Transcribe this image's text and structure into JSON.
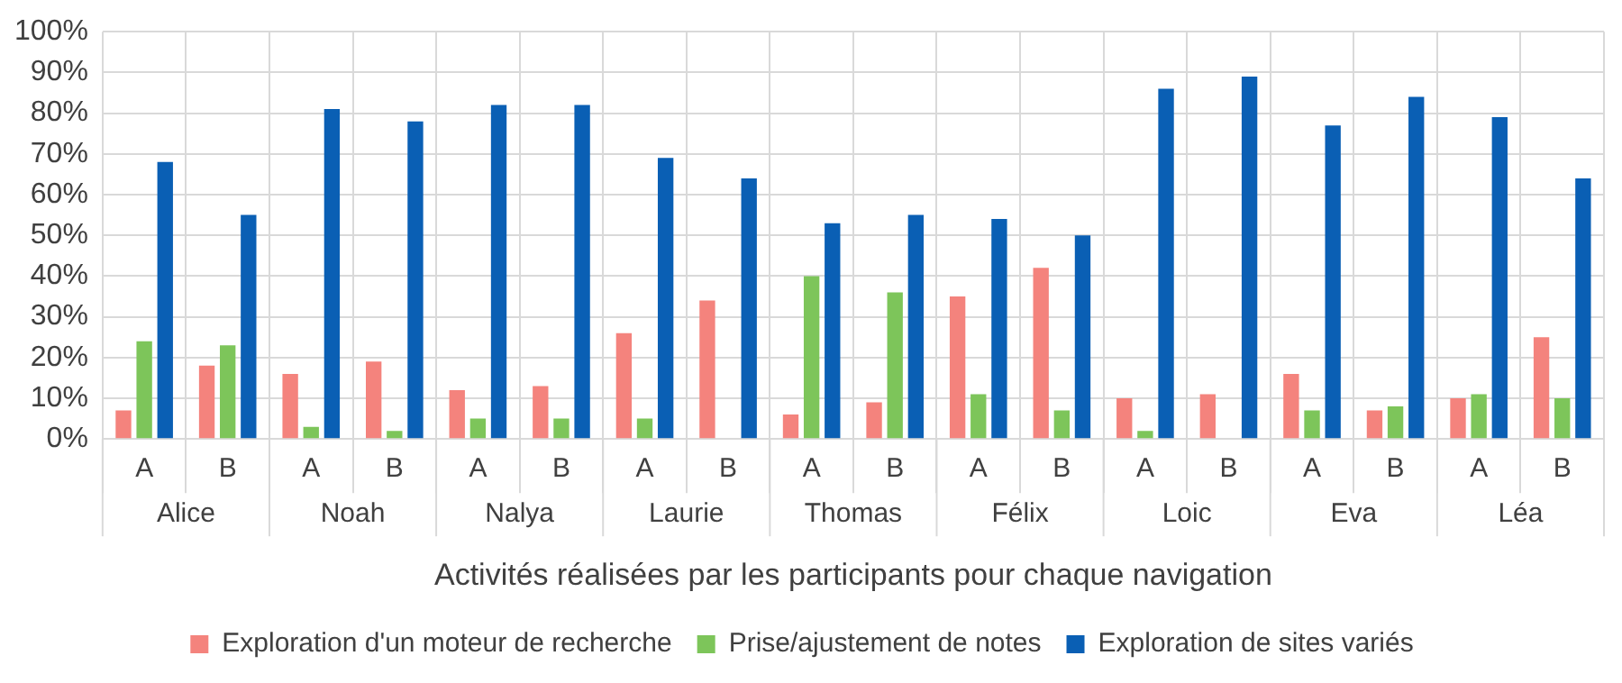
{
  "chart_data": {
    "type": "bar",
    "xlabel": "Activités réalisées par les participants pour chaque navigation",
    "categories": [
      "A",
      "B",
      "A",
      "B",
      "A",
      "B",
      "A",
      "B",
      "A",
      "B",
      "A",
      "B",
      "A",
      "B",
      "A",
      "B",
      "A",
      "B"
    ],
    "annotations": [
      "Alice",
      "Noah",
      "Nalya",
      "Laurie",
      "Thomas",
      "Félix",
      "Loic",
      "Eva",
      "Léa"
    ],
    "series": [
      {
        "name": "Exploration d'un moteur de recherche",
        "color": "#f4837d",
        "values": [
          7,
          18,
          16,
          19,
          12,
          13,
          26,
          34,
          6,
          9,
          35,
          42,
          10,
          11,
          16,
          7,
          10,
          25
        ]
      },
      {
        "name": "Prise/ajustement de notes",
        "color": "#7dc55a",
        "values": [
          24,
          23,
          3,
          2,
          5,
          5,
          5,
          0,
          40,
          36,
          11,
          7,
          2,
          0,
          7,
          8,
          11,
          10
        ]
      },
      {
        "name": "Exploration de sites variés",
        "color": "#0a5fb4",
        "values": [
          68,
          55,
          81,
          78,
          82,
          82,
          69,
          64,
          53,
          55,
          54,
          50,
          86,
          89,
          77,
          84,
          79,
          64
        ]
      }
    ],
    "ylim": [
      0,
      100
    ],
    "yticks": [
      {
        "value": 0,
        "label": "0%"
      },
      {
        "value": 10,
        "label": "10%"
      },
      {
        "value": 20,
        "label": "20%"
      },
      {
        "value": 30,
        "label": "30%"
      },
      {
        "value": 40,
        "label": "40%"
      },
      {
        "value": 50,
        "label": "50%"
      },
      {
        "value": 60,
        "label": "60%"
      },
      {
        "value": 70,
        "label": "70%"
      },
      {
        "value": 80,
        "label": "80%"
      },
      {
        "value": 90,
        "label": "90%"
      },
      {
        "value": 100,
        "label": "100%"
      }
    ],
    "grid": true,
    "legend": "bottom"
  }
}
